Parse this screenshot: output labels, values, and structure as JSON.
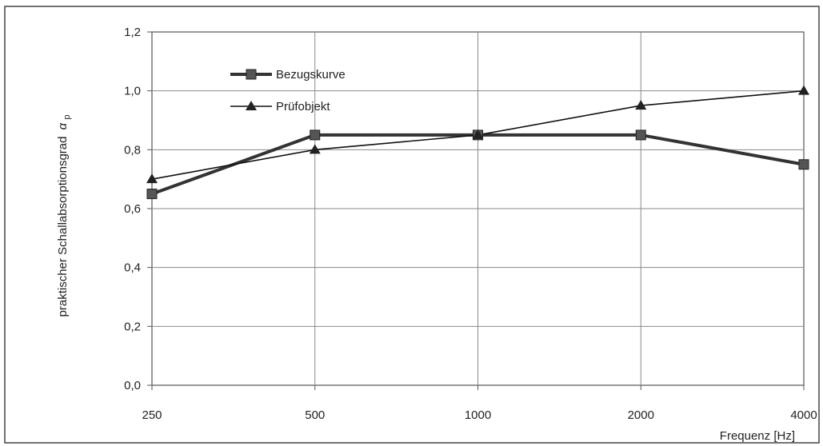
{
  "chart_data": {
    "type": "line",
    "categories": [
      "250",
      "500",
      "1000",
      "2000",
      "4000"
    ],
    "xlabel": "Frequenz [Hz]",
    "ylabel": "praktischer Schallabsorptionsgrad",
    "ylabel_symbol": "α",
    "ylabel_subscript": "p",
    "ylim": [
      0,
      1.2
    ],
    "yticks": [
      "0,0",
      "0,2",
      "0,4",
      "0,6",
      "0,8",
      "1,0",
      "1,2"
    ],
    "grid": true,
    "legend_position": "top-left",
    "series": [
      {
        "name": "Bezugskurve",
        "marker": "square",
        "values": [
          0.65,
          0.85,
          0.85,
          0.85,
          0.75
        ],
        "color": "#333333"
      },
      {
        "name": "Prüfobjekt",
        "marker": "triangle",
        "values": [
          0.7,
          0.8,
          0.85,
          0.95,
          1.0
        ],
        "color": "#111111"
      }
    ]
  }
}
